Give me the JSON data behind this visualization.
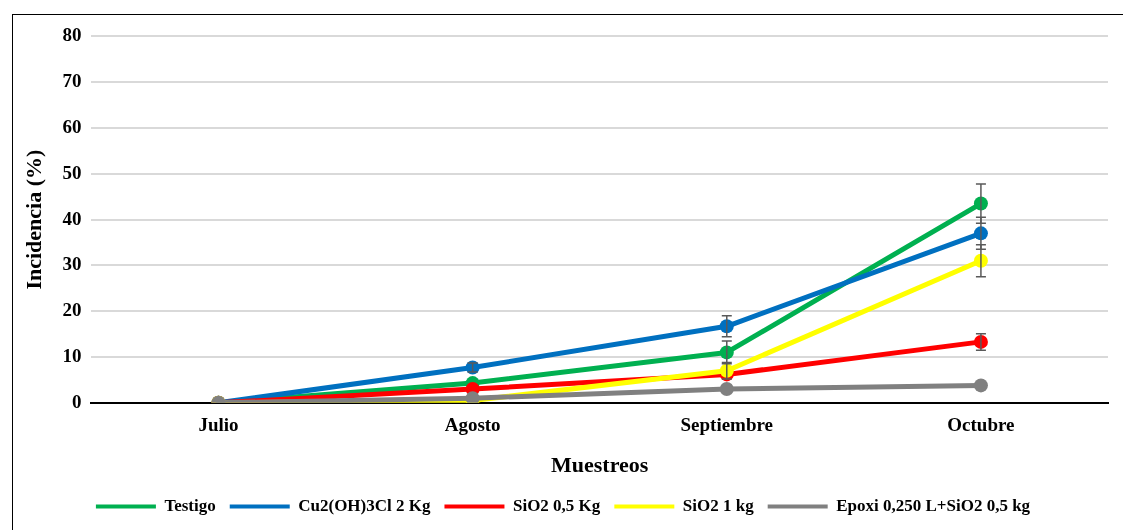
{
  "chart_data": {
    "type": "line",
    "xlabel": "Muestreos",
    "ylabel": "Incidencia (%)",
    "categories": [
      "Julio",
      "Agosto",
      "Septiembre",
      "Octubre"
    ],
    "series": [
      {
        "name": "Testigo",
        "color": "#00b050",
        "values": [
          0,
          4.3,
          11,
          43.5
        ],
        "errors": [
          null,
          null,
          2.5,
          4.3
        ]
      },
      {
        "name": "Cu2(OH)3Cl 2 Kg",
        "color": "#0070c0",
        "values": [
          0,
          7.7,
          16.7,
          37
        ],
        "errors": [
          null,
          1,
          2.3,
          3.5
        ]
      },
      {
        "name": "SiO2 0,5 Kg",
        "color": "#ff0000",
        "values": [
          0,
          3,
          6.2,
          13.3
        ],
        "errors": [
          null,
          null,
          null,
          1.8
        ]
      },
      {
        "name": "SiO2 1 kg",
        "color": "#ffff00",
        "values": [
          0,
          0.5,
          7,
          31
        ],
        "errors": [
          null,
          null,
          1.8,
          3.5
        ]
      },
      {
        "name": "Epoxi 0,250 L+SiO2 0,5 kg",
        "color": "#808080",
        "values": [
          0,
          1,
          3,
          3.8
        ]
      }
    ],
    "ylim": [
      0,
      80
    ],
    "yticks": [
      0,
      10,
      20,
      30,
      40,
      50,
      60,
      70,
      80
    ],
    "grid": "y",
    "legend": "bottom",
    "marker": "circle",
    "line_style": "solid"
  }
}
